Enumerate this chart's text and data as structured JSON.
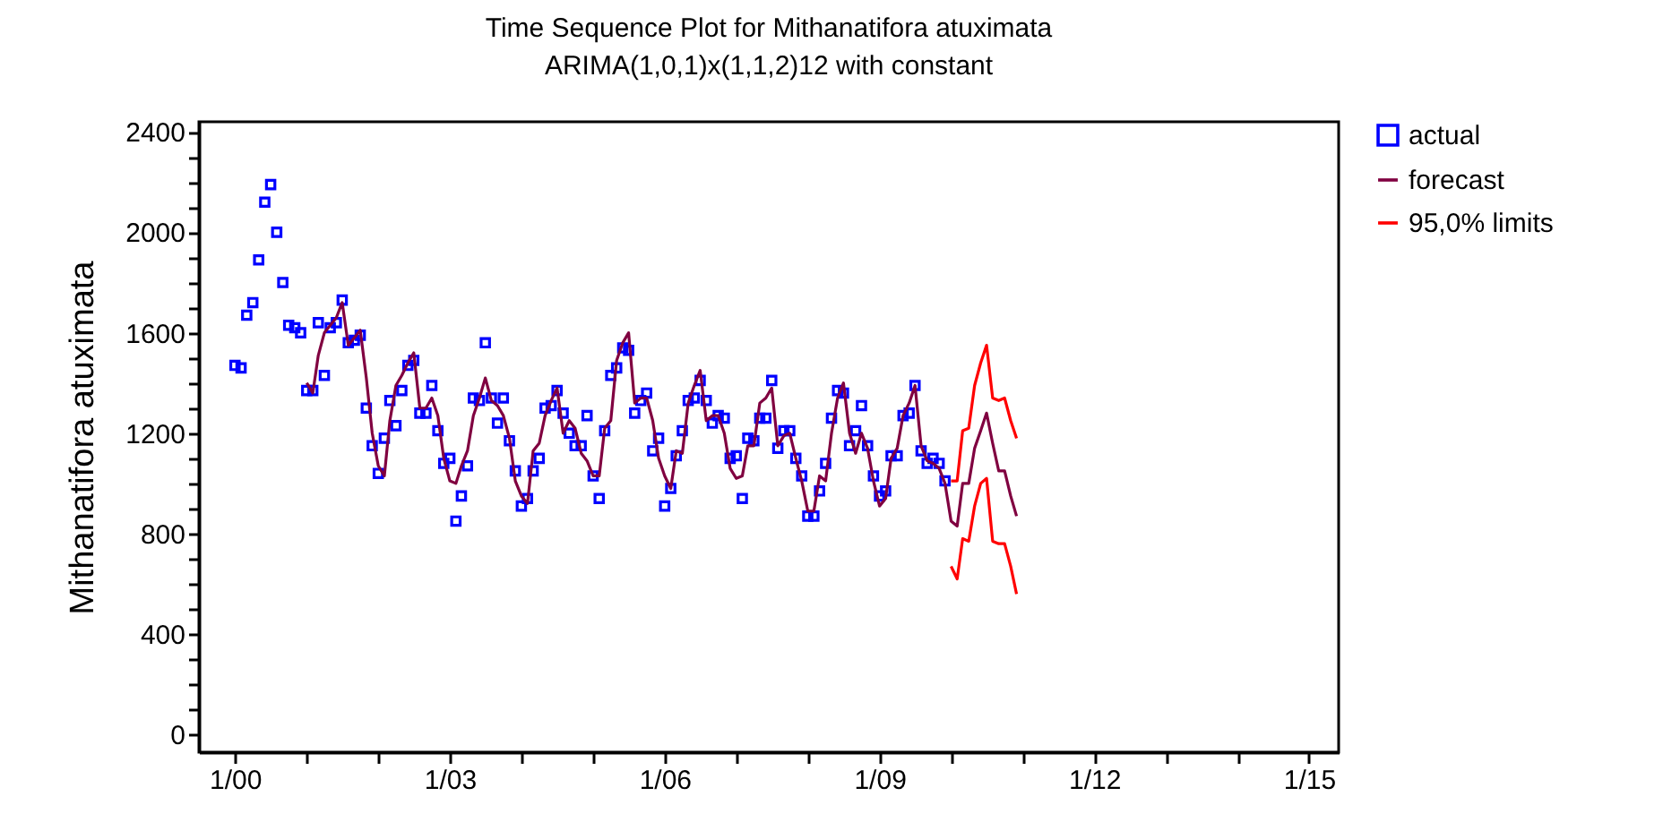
{
  "chart_data": {
    "type": "scatter",
    "title": "Time Sequence Plot for Mithanatifora atuximata",
    "subtitle": "ARIMA(1,0,1)x(1,1,2)12 with constant",
    "ylabel": "Mithanatifora atuximata",
    "legend": "top right",
    "xlim": [
      "1999-07",
      "2015-06"
    ],
    "xticks": [
      {
        "value": "2000-01",
        "label": "1/00"
      },
      {
        "value": "2001-01",
        "label": null
      },
      {
        "value": "2002-01",
        "label": null
      },
      {
        "value": "2003-01",
        "label": "1/03"
      },
      {
        "value": "2004-01",
        "label": null
      },
      {
        "value": "2005-01",
        "label": null
      },
      {
        "value": "2006-01",
        "label": "1/06"
      },
      {
        "value": "2007-01",
        "label": null
      },
      {
        "value": "2008-01",
        "label": null
      },
      {
        "value": "2009-01",
        "label": "1/09"
      },
      {
        "value": "2010-01",
        "label": null
      },
      {
        "value": "2011-01",
        "label": null
      },
      {
        "value": "2012-01",
        "label": "1/12"
      },
      {
        "value": "2013-01",
        "label": null
      },
      {
        "value": "2014-01",
        "label": null
      },
      {
        "value": "2015-01",
        "label": "1/15"
      }
    ],
    "ylim": [
      -70,
      2440
    ],
    "yticks": [
      0,
      {
        "value": 100,
        "label": null
      },
      {
        "value": 200,
        "label": null
      },
      {
        "value": 300,
        "label": null
      },
      400,
      {
        "value": 500,
        "label": null
      },
      {
        "value": 600,
        "label": null
      },
      {
        "value": 700,
        "label": null
      },
      800,
      {
        "value": 900,
        "label": null
      },
      {
        "value": 1000,
        "label": null
      },
      {
        "value": 1100,
        "label": null
      },
      1200,
      {
        "value": 1300,
        "label": null
      },
      {
        "value": 1400,
        "label": null
      },
      {
        "value": 1500,
        "label": null
      },
      1600,
      {
        "value": 1700,
        "label": null
      },
      {
        "value": 1800,
        "label": null
      },
      {
        "value": 1900,
        "label": null
      },
      2000,
      {
        "value": 2100,
        "label": null
      },
      {
        "value": 2200,
        "label": null
      },
      {
        "value": 2300,
        "label": null
      },
      2400
    ],
    "x": [
      "2000-01",
      "2000-02",
      "2000-03",
      "2000-04",
      "2000-05",
      "2000-06",
      "2000-07",
      "2000-08",
      "2000-09",
      "2000-10",
      "2000-11",
      "2000-12",
      "2001-01",
      "2001-02",
      "2001-03",
      "2001-04",
      "2001-05",
      "2001-06",
      "2001-07",
      "2001-08",
      "2001-09",
      "2001-10",
      "2001-11",
      "2001-12",
      "2002-01",
      "2002-02",
      "2002-03",
      "2002-04",
      "2002-05",
      "2002-06",
      "2002-07",
      "2002-08",
      "2002-09",
      "2002-10",
      "2002-11",
      "2002-12",
      "2003-01",
      "2003-02",
      "2003-03",
      "2003-04",
      "2003-05",
      "2003-06",
      "2003-07",
      "2003-08",
      "2003-09",
      "2003-10",
      "2003-11",
      "2003-12",
      "2004-01",
      "2004-02",
      "2004-03",
      "2004-04",
      "2004-05",
      "2004-06",
      "2004-07",
      "2004-08",
      "2004-09",
      "2004-10",
      "2004-11",
      "2004-12",
      "2005-01",
      "2005-02",
      "2005-03",
      "2005-04",
      "2005-05",
      "2005-06",
      "2005-07",
      "2005-08",
      "2005-09",
      "2005-10",
      "2005-11",
      "2005-12",
      "2006-01",
      "2006-02",
      "2006-03",
      "2006-04",
      "2006-05",
      "2006-06",
      "2006-07",
      "2006-08",
      "2006-09",
      "2006-10",
      "2006-11",
      "2006-12",
      "2007-01",
      "2007-02",
      "2007-03",
      "2007-04",
      "2007-05",
      "2007-06",
      "2007-07",
      "2007-08",
      "2007-09",
      "2007-10",
      "2007-11",
      "2007-12",
      "2008-01",
      "2008-02",
      "2008-03",
      "2008-04",
      "2008-05",
      "2008-06",
      "2008-07",
      "2008-08",
      "2008-09",
      "2008-10",
      "2008-11",
      "2008-12",
      "2009-01",
      "2009-02",
      "2009-03",
      "2009-04",
      "2009-05",
      "2009-06",
      "2009-07",
      "2009-08",
      "2009-09",
      "2009-10",
      "2009-11",
      "2009-12"
    ],
    "series": [
      {
        "name": "actual",
        "marker": "square",
        "color": "#0000ff",
        "values": [
          1470,
          1460,
          1670,
          1720,
          1890,
          2120,
          2190,
          2000,
          1800,
          1630,
          1620,
          1600,
          1370,
          1370,
          1640,
          1430,
          1620,
          1640,
          1730,
          1560,
          1570,
          1590,
          1300,
          1150,
          1040,
          1180,
          1330,
          1230,
          1370,
          1470,
          1490,
          1280,
          1280,
          1390,
          1210,
          1080,
          1100,
          850,
          950,
          1070,
          1340,
          1330,
          1560,
          1340,
          1240,
          1340,
          1170,
          1050,
          910,
          940,
          1050,
          1100,
          1300,
          1310,
          1370,
          1280,
          1200,
          1150,
          1150,
          1270,
          1030,
          940,
          1210,
          1430,
          1460,
          1540,
          1530,
          1280,
          1330,
          1360,
          1130,
          1180,
          910,
          980,
          1110,
          1210,
          1330,
          1340,
          1410,
          1330,
          1240,
          1270,
          1260,
          1100,
          1110,
          940,
          1180,
          1170,
          1260,
          1260,
          1410,
          1140,
          1210,
          1210,
          1100,
          1030,
          870,
          870,
          970,
          1080,
          1260,
          1370,
          1360,
          1150,
          1210,
          1310,
          1150,
          1030,
          950,
          970,
          1110,
          1110,
          1270,
          1280,
          1390,
          1130,
          1080,
          1100,
          1080,
          1010
        ]
      },
      {
        "name": "forecast",
        "type": "line",
        "color": "#800040",
        "x": [
          "2001-01",
          "2001-02",
          "2001-03",
          "2001-04",
          "2001-05",
          "2001-06",
          "2001-07",
          "2001-08",
          "2001-09",
          "2001-10",
          "2001-11",
          "2001-12",
          "2002-01",
          "2002-02",
          "2002-03",
          "2002-04",
          "2002-05",
          "2002-06",
          "2002-07",
          "2002-08",
          "2002-09",
          "2002-10",
          "2002-11",
          "2002-12",
          "2003-01",
          "2003-02",
          "2003-03",
          "2003-04",
          "2003-05",
          "2003-06",
          "2003-07",
          "2003-08",
          "2003-09",
          "2003-10",
          "2003-11",
          "2003-12",
          "2004-01",
          "2004-02",
          "2004-03",
          "2004-04",
          "2004-05",
          "2004-06",
          "2004-07",
          "2004-08",
          "2004-09",
          "2004-10",
          "2004-11",
          "2004-12",
          "2005-01",
          "2005-02",
          "2005-03",
          "2005-04",
          "2005-05",
          "2005-06",
          "2005-07",
          "2005-08",
          "2005-09",
          "2005-10",
          "2005-11",
          "2005-12",
          "2006-01",
          "2006-02",
          "2006-03",
          "2006-04",
          "2006-05",
          "2006-06",
          "2006-07",
          "2006-08",
          "2006-09",
          "2006-10",
          "2006-11",
          "2006-12",
          "2007-01",
          "2007-02",
          "2007-03",
          "2007-04",
          "2007-05",
          "2007-06",
          "2007-07",
          "2007-08",
          "2007-09",
          "2007-10",
          "2007-11",
          "2007-12",
          "2008-01",
          "2008-02",
          "2008-03",
          "2008-04",
          "2008-05",
          "2008-06",
          "2008-07",
          "2008-08",
          "2008-09",
          "2008-10",
          "2008-11",
          "2008-12",
          "2009-01",
          "2009-02",
          "2009-03",
          "2009-04",
          "2009-05",
          "2009-06",
          "2009-07",
          "2009-08",
          "2009-09",
          "2009-10",
          "2009-11",
          "2009-12",
          "2010-01",
          "2010-02",
          "2010-03",
          "2010-04",
          "2010-05",
          "2010-06",
          "2010-07",
          "2010-08",
          "2010-09",
          "2010-10",
          "2010-11",
          "2010-12"
        ],
        "values": [
          1400,
          1360,
          1510,
          1600,
          1630,
          1660,
          1720,
          1550,
          1580,
          1610,
          1420,
          1200,
          1070,
          1030,
          1250,
          1390,
          1430,
          1480,
          1520,
          1300,
          1300,
          1340,
          1270,
          1100,
          1010,
          1000,
          1070,
          1130,
          1270,
          1340,
          1420,
          1330,
          1310,
          1270,
          1180,
          1010,
          950,
          920,
          1130,
          1160,
          1270,
          1330,
          1380,
          1200,
          1250,
          1220,
          1120,
          1090,
          1030,
          1030,
          1220,
          1250,
          1490,
          1560,
          1600,
          1320,
          1340,
          1340,
          1250,
          1100,
          1030,
          980,
          1130,
          1120,
          1320,
          1390,
          1450,
          1250,
          1270,
          1270,
          1200,
          1060,
          1020,
          1030,
          1150,
          1150,
          1320,
          1340,
          1380,
          1150,
          1190,
          1200,
          1100,
          1010,
          890,
          890,
          1030,
          1010,
          1200,
          1340,
          1400,
          1200,
          1120,
          1200,
          1140,
          1010,
          910,
          940,
          1100,
          1140,
          1270,
          1320,
          1390,
          1150,
          1090,
          1080,
          1060,
          1000,
          850,
          830,
          1000,
          1000,
          1140,
          1210,
          1280,
          1160,
          1050,
          1050,
          950,
          870
        ]
      },
      {
        "name": "95,0% limits",
        "type": "line",
        "color": "#ff0000",
        "x": [
          "2010-01",
          "2010-02",
          "2010-03",
          "2010-04",
          "2010-05",
          "2010-06",
          "2010-07",
          "2010-08",
          "2010-09",
          "2010-10",
          "2010-11",
          "2010-12"
        ],
        "values": [
          1010,
          1010,
          1210,
          1220,
          1390,
          1480,
          1550,
          1340,
          1330,
          1340,
          1250,
          1180
        ]
      },
      {
        "type": "line",
        "color": "#ff0000",
        "x": [
          "2010-01",
          "2010-02",
          "2010-03",
          "2010-04",
          "2010-05",
          "2010-06",
          "2010-07",
          "2010-08",
          "2010-09",
          "2010-10",
          "2010-11",
          "2010-12"
        ],
        "values": [
          670,
          620,
          780,
          770,
          910,
          1000,
          1020,
          770,
          760,
          760,
          670,
          560
        ]
      }
    ]
  }
}
